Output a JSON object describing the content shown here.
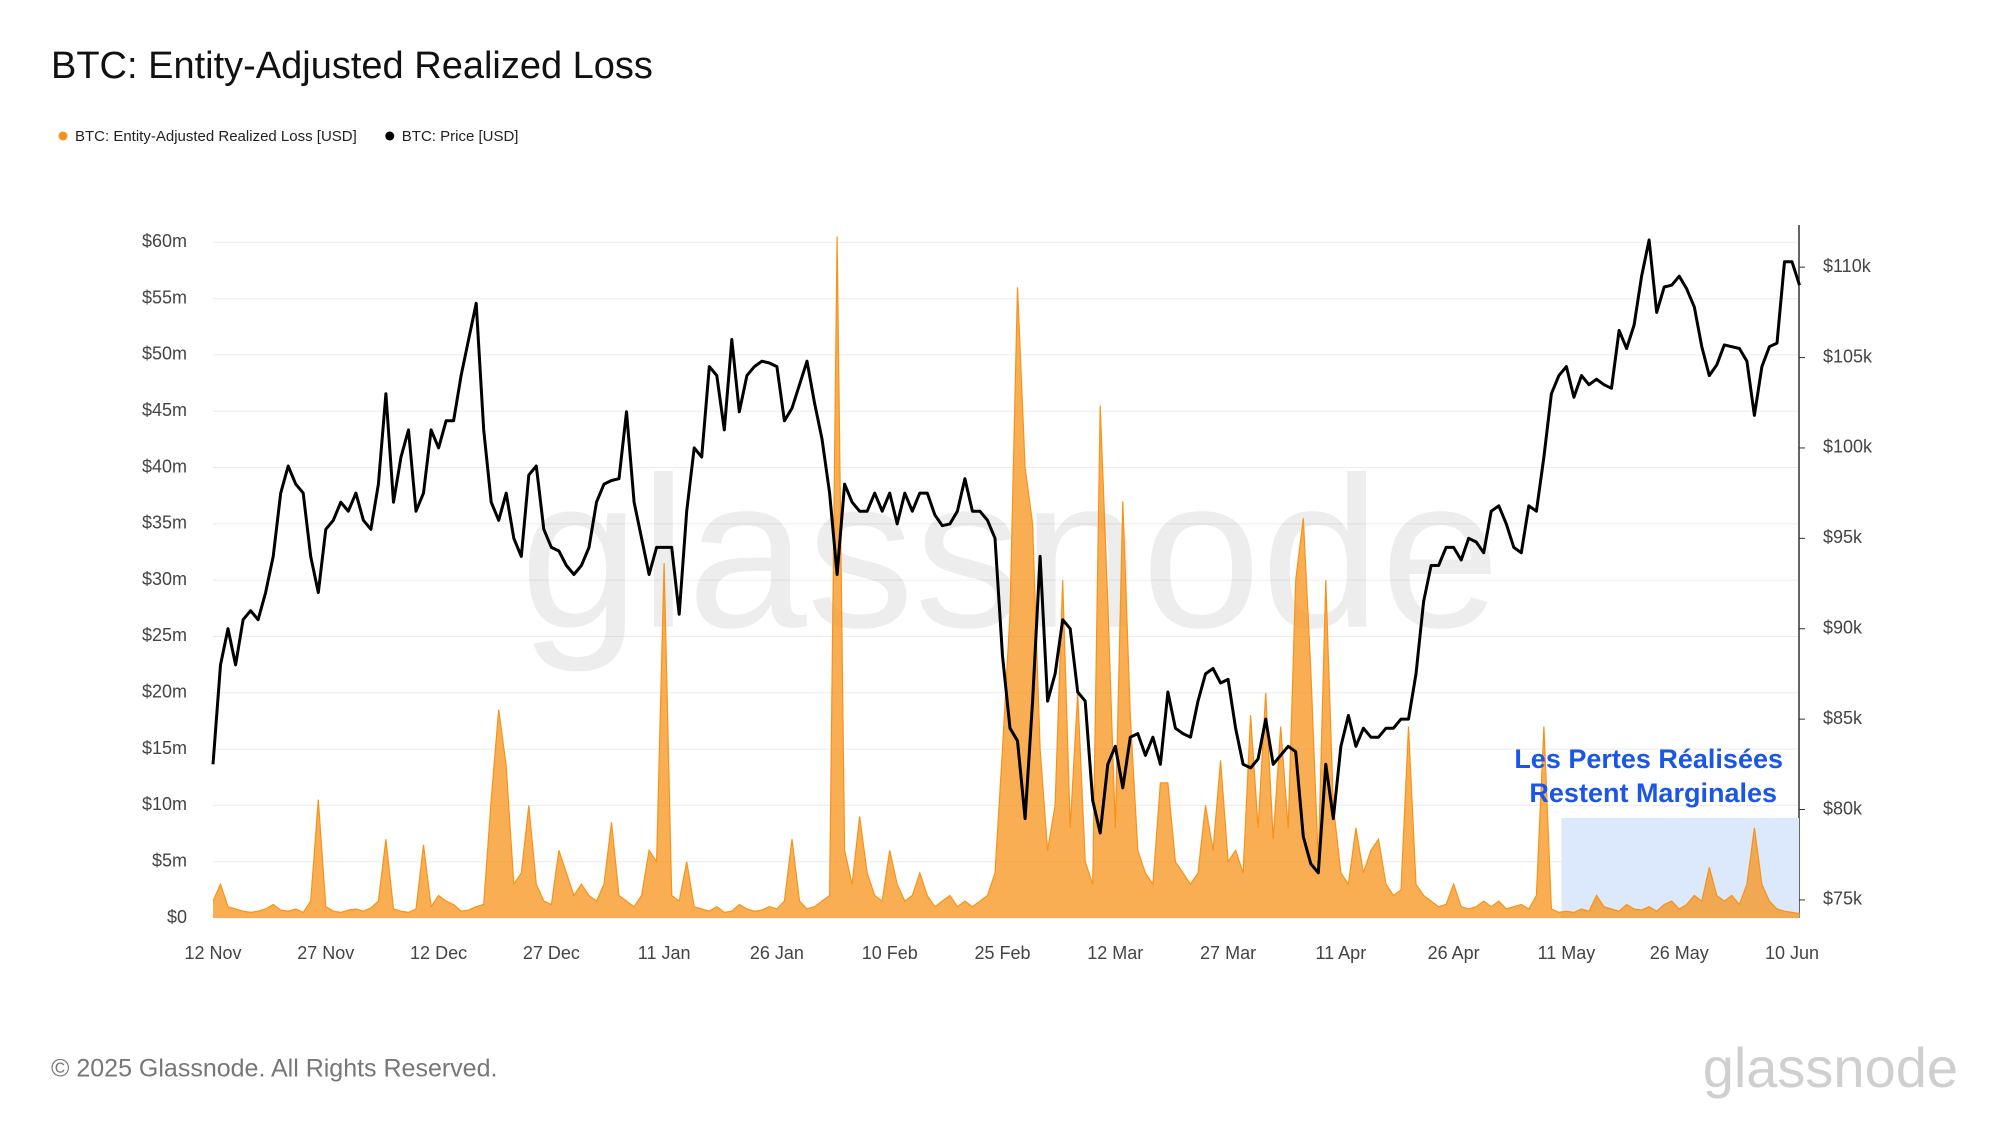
{
  "chart_data": {
    "type": "area-line",
    "title": "BTC: Entity-Adjusted Realized Loss",
    "categories": [
      "12 Nov",
      "13 Nov",
      "14 Nov",
      "15 Nov",
      "16 Nov",
      "17 Nov",
      "18 Nov",
      "19 Nov",
      "20 Nov",
      "21 Nov",
      "22 Nov",
      "23 Nov",
      "24 Nov",
      "25 Nov",
      "26 Nov",
      "27 Nov",
      "28 Nov",
      "29 Nov",
      "30 Nov",
      "1 Dec",
      "2 Dec",
      "3 Dec",
      "4 Dec",
      "5 Dec",
      "6 Dec",
      "7 Dec",
      "8 Dec",
      "9 Dec",
      "10 Dec",
      "11 Dec",
      "12 Dec",
      "13 Dec",
      "14 Dec",
      "15 Dec",
      "16 Dec",
      "17 Dec",
      "18 Dec",
      "19 Dec",
      "20 Dec",
      "21 Dec",
      "22 Dec",
      "23 Dec",
      "24 Dec",
      "25 Dec",
      "26 Dec",
      "27 Dec",
      "28 Dec",
      "29 Dec",
      "30 Dec",
      "31 Dec",
      "1 Jan",
      "2 Jan",
      "3 Jan",
      "4 Jan",
      "5 Jan",
      "6 Jan",
      "7 Jan",
      "8 Jan",
      "9 Jan",
      "10 Jan",
      "11 Jan",
      "12 Jan",
      "13 Jan",
      "14 Jan",
      "15 Jan",
      "16 Jan",
      "17 Jan",
      "18 Jan",
      "19 Jan",
      "20 Jan",
      "21 Jan",
      "22 Jan",
      "23 Jan",
      "24 Jan",
      "25 Jan",
      "26 Jan",
      "27 Jan",
      "28 Jan",
      "29 Jan",
      "30 Jan",
      "31 Jan",
      "1 Feb",
      "2 Feb",
      "3 Feb",
      "4 Feb",
      "5 Feb",
      "6 Feb",
      "7 Feb",
      "8 Feb",
      "9 Feb",
      "10 Feb",
      "11 Feb",
      "12 Feb",
      "13 Feb",
      "14 Feb",
      "15 Feb",
      "16 Feb",
      "17 Feb",
      "18 Feb",
      "19 Feb",
      "20 Feb",
      "21 Feb",
      "22 Feb",
      "23 Feb",
      "24 Feb",
      "25 Feb",
      "26 Feb",
      "27 Feb",
      "28 Feb",
      "1 Mar",
      "2 Mar",
      "3 Mar",
      "4 Mar",
      "5 Mar",
      "6 Mar",
      "7 Mar",
      "8 Mar",
      "9 Mar",
      "10 Mar",
      "11 Mar",
      "12 Mar",
      "13 Mar",
      "14 Mar",
      "15 Mar",
      "16 Mar",
      "17 Mar",
      "18 Mar",
      "19 Mar",
      "20 Mar",
      "21 Mar",
      "22 Mar",
      "23 Mar",
      "24 Mar",
      "25 Mar",
      "26 Mar",
      "27 Mar",
      "28 Mar",
      "29 Mar",
      "30 Mar",
      "31 Mar",
      "1 Apr",
      "2 Apr",
      "3 Apr",
      "4 Apr",
      "5 Apr",
      "6 Apr",
      "7 Apr",
      "8 Apr",
      "9 Apr",
      "10 Apr",
      "11 Apr",
      "12 Apr",
      "13 Apr",
      "14 Apr",
      "15 Apr",
      "16 Apr",
      "17 Apr",
      "18 Apr",
      "19 Apr",
      "20 Apr",
      "21 Apr",
      "22 Apr",
      "23 Apr",
      "24 Apr",
      "25 Apr",
      "26 Apr",
      "27 Apr",
      "28 Apr",
      "29 Apr",
      "30 Apr",
      "1 May",
      "2 May",
      "3 May",
      "4 May",
      "5 May",
      "6 May",
      "7 May",
      "8 May",
      "9 May",
      "10 May",
      "11 May",
      "12 May",
      "13 May",
      "14 May",
      "15 May",
      "16 May",
      "17 May",
      "18 May",
      "19 May",
      "20 May",
      "21 May",
      "22 May",
      "23 May",
      "24 May",
      "25 May",
      "26 May",
      "27 May",
      "28 May",
      "29 May",
      "30 May",
      "31 May",
      "1 Jun",
      "2 Jun",
      "3 Jun",
      "4 Jun",
      "5 Jun",
      "6 Jun",
      "7 Jun",
      "8 Jun",
      "9 Jun",
      "10 Jun",
      "11 Jun"
    ],
    "series": [
      {
        "name": "BTC: Entity-Adjusted Realized Loss [USD]",
        "color": "#f7931a",
        "axis": "y",
        "values": [
          1.5,
          3,
          1,
          0.8,
          0.6,
          0.5,
          0.6,
          0.8,
          1.2,
          0.7,
          0.6,
          0.8,
          0.5,
          1.5,
          10.5,
          1,
          0.6,
          0.5,
          0.7,
          0.8,
          0.6,
          0.9,
          1.5,
          7,
          0.8,
          0.6,
          0.5,
          0.8,
          6.5,
          1,
          2,
          1.5,
          1.2,
          0.6,
          0.7,
          1,
          1.2,
          10.5,
          18.5,
          13.5,
          3,
          4,
          10,
          3,
          1.5,
          1.2,
          6,
          4,
          2,
          3,
          2,
          1.5,
          3,
          8.5,
          2,
          1.5,
          1,
          2,
          6,
          5,
          31.5,
          2,
          1.5,
          5,
          1,
          0.8,
          0.6,
          1,
          0.5,
          0.6,
          1.2,
          0.8,
          0.6,
          0.7,
          1,
          0.8,
          1.5,
          7,
          1.5,
          0.8,
          1,
          1.5,
          2,
          60.5,
          6,
          3,
          9,
          4,
          2,
          1.5,
          6,
          3,
          1.5,
          2,
          4,
          2,
          1,
          1.5,
          2,
          1,
          1.5,
          1,
          1.5,
          2,
          4,
          15,
          27,
          56,
          40,
          35,
          15,
          6,
          10,
          30,
          8,
          20,
          5,
          3,
          45.5,
          28,
          8,
          37,
          18,
          6,
          4,
          3,
          12,
          12,
          5,
          4,
          3,
          4,
          10,
          6,
          14,
          5,
          6,
          4,
          18,
          8,
          20,
          7,
          17,
          8,
          30,
          35.5,
          22,
          5,
          30,
          10,
          4,
          3,
          8,
          4,
          6,
          7,
          3,
          2,
          2.5,
          17,
          3,
          2,
          1.5,
          1,
          1.2,
          3,
          1,
          0.8,
          1,
          1.5,
          1,
          1.5,
          0.8,
          1,
          1.2,
          0.8,
          2,
          17,
          0.8,
          0.5,
          0.6,
          0.5,
          0.8,
          0.6,
          2,
          1,
          0.8,
          0.6,
          1.2,
          0.8,
          0.7,
          1,
          0.6,
          1.2,
          1.5,
          0.8,
          1.2,
          2,
          1.5,
          4.5,
          2,
          1.5,
          2,
          1.2,
          3,
          8,
          3,
          1.5,
          0.8,
          0.6,
          0.5,
          0.4
        ]
      },
      {
        "name": "BTC: Price [USD]",
        "color": "#000000",
        "axis": "y2",
        "values": [
          82.5,
          88,
          90,
          88,
          90.5,
          91,
          90.5,
          92,
          94,
          97.5,
          99,
          98,
          97.5,
          94,
          92,
          95.5,
          96,
          97,
          96.5,
          97.5,
          96,
          95.5,
          98,
          103,
          97,
          99.5,
          101,
          96.5,
          97.5,
          101,
          100,
          101.5,
          101.5,
          104,
          106,
          108,
          101,
          97,
          96,
          97.5,
          95,
          94,
          98.5,
          99,
          95.5,
          94.5,
          94.3,
          93.5,
          93,
          93.5,
          94.5,
          97,
          98,
          98.2,
          98.3,
          102,
          97,
          95,
          93,
          94.5,
          94.5,
          94.5,
          90.8,
          96.5,
          100,
          99.5,
          104.5,
          104,
          101,
          106,
          102,
          104,
          104.5,
          104.8,
          104.7,
          104.5,
          101.5,
          102.2,
          103.5,
          104.8,
          102.5,
          100.5,
          97.5,
          93,
          98,
          97,
          96.5,
          96.5,
          97.5,
          96.5,
          97.5,
          95.8,
          97.5,
          96.5,
          97.5,
          97.5,
          96.3,
          95.7,
          95.8,
          96.5,
          98.3,
          96.5,
          96.5,
          96,
          95,
          88.5,
          84.5,
          83.8,
          79.5,
          86,
          94,
          86,
          87.5,
          90.5,
          90,
          86.5,
          86,
          80.5,
          78.7,
          82.5,
          83.5,
          81.2,
          84,
          84.2,
          83,
          84,
          82.5,
          86.5,
          84.5,
          84.2,
          84,
          86,
          87.5,
          87.8,
          87,
          87.2,
          84.5,
          82.5,
          82.3,
          82.8,
          85,
          82.5,
          83,
          83.5,
          83.2,
          78.5,
          77,
          76.5,
          82.5,
          79.5,
          83.5,
          85.2,
          83.5,
          84.5,
          84,
          84,
          84.5,
          84.5,
          85,
          85,
          87.5,
          91.5,
          93.5,
          93.5,
          94.5,
          94.5,
          93.8,
          95,
          94.8,
          94.2,
          96.5,
          96.8,
          95.8,
          94.5,
          94.2,
          96.8,
          96.5,
          99.5,
          103,
          104,
          104.5,
          102.8,
          104,
          103.5,
          103.8,
          103.5,
          103.3,
          106.5,
          105.5,
          106.8,
          109.5,
          111.5,
          107.5,
          108.9,
          109,
          109.5,
          108.8,
          107.8,
          105.6,
          104,
          104.6,
          105.7,
          105.6,
          105.5,
          104.8,
          101.8,
          104.5,
          105.6,
          105.8,
          110.3,
          110.3,
          109
        ]
      }
    ],
    "ylim": [
      0,
      61
    ],
    "yticks": [
      {
        "value": 0,
        "label": "$0"
      },
      {
        "value": 5,
        "label": "$5m"
      },
      {
        "value": 10,
        "label": "$10m"
      },
      {
        "value": 15,
        "label": "$15m"
      },
      {
        "value": 20,
        "label": "$20m"
      },
      {
        "value": 25,
        "label": "$25m"
      },
      {
        "value": 30,
        "label": "$30m"
      },
      {
        "value": 35,
        "label": "$35m"
      },
      {
        "value": 40,
        "label": "$40m"
      },
      {
        "value": 45,
        "label": "$45m"
      },
      {
        "value": 50,
        "label": "$50m"
      },
      {
        "value": 55,
        "label": "$55m"
      },
      {
        "value": 60,
        "label": "$60m"
      }
    ],
    "y2lim": [
      74,
      112
    ],
    "y2ticks": [
      {
        "value": 75,
        "label": "$75k"
      },
      {
        "value": 80,
        "label": "$80k"
      },
      {
        "value": 85,
        "label": "$85k"
      },
      {
        "value": 90,
        "label": "$90k"
      },
      {
        "value": 95,
        "label": "$95k"
      },
      {
        "value": 100,
        "label": "$100k"
      },
      {
        "value": 105,
        "label": "$105k"
      },
      {
        "value": 110,
        "label": "$110k"
      }
    ],
    "grid": true,
    "legend": "top-left",
    "annotation": {
      "lines": [
        "Les Pertes Réalisées",
        "Restent Marginales"
      ],
      "color": "#1a56e8",
      "box_color": "#dce8fb"
    },
    "watermark": "glassnode",
    "footer": "© 2025 Glassnode. All Rights Reserved.",
    "logo": "glassnode"
  }
}
